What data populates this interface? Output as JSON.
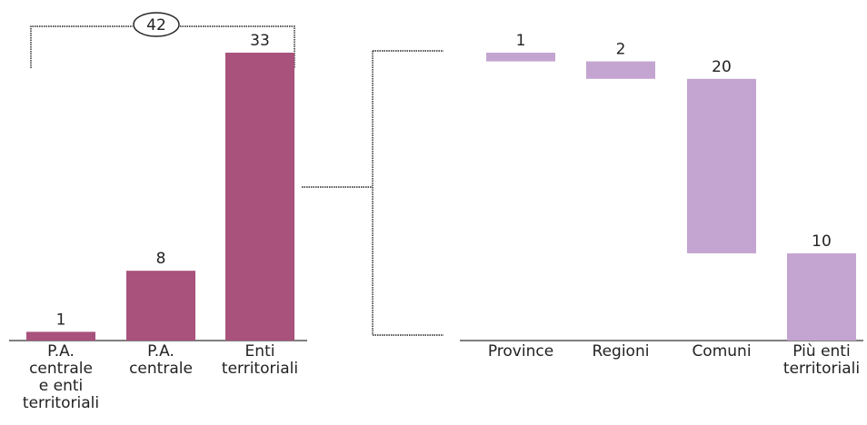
{
  "colors": {
    "left_bar": "#a8527c",
    "right_bar": "#c4a5d1",
    "text": "#222222"
  },
  "chart_data": [
    {
      "type": "bar",
      "categories": [
        [
          "P.A.",
          "centrale",
          "e enti",
          "territoriali"
        ],
        [
          "P.A.",
          "centrale"
        ],
        [
          "Enti",
          "territoriali"
        ]
      ],
      "values": [
        1,
        8,
        33
      ],
      "ylim": [
        0,
        33
      ],
      "total_label": "42",
      "grid": false
    },
    {
      "type": "bar",
      "subtype": "waterfall",
      "categories": [
        [
          "Province"
        ],
        [
          "Regioni"
        ],
        [
          "Comuni"
        ],
        [
          "Più enti",
          "territoriali"
        ]
      ],
      "values": [
        1,
        2,
        20,
        10
      ],
      "ylim": [
        0,
        33
      ],
      "grid": false
    }
  ]
}
